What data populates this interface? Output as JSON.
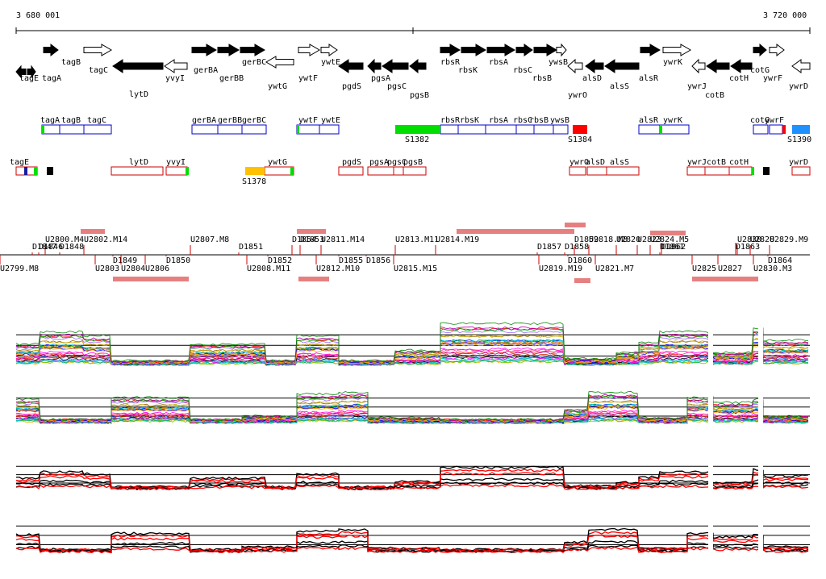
{
  "ruler": {
    "start_label": "3 680 001",
    "end_label": "3 720 000"
  },
  "genes_top": [
    {
      "name": "tagE",
      "label": "tagE",
      "strand": "-"
    },
    {
      "name": "tagA",
      "label": "tagA",
      "strand": "+"
    },
    {
      "name": "tagB",
      "label": "tagB",
      "strand": "+"
    },
    {
      "name": "tagC",
      "label": "tagC",
      "strand": "+"
    },
    {
      "name": "lytD",
      "label": "lytD",
      "strand": "-"
    },
    {
      "name": "yvyI",
      "label": "yvyI",
      "strand": "-"
    },
    {
      "name": "gerBA",
      "label": "gerBA",
      "strand": "+"
    },
    {
      "name": "gerBB",
      "label": "gerBB",
      "strand": "+"
    },
    {
      "name": "gerBC",
      "label": "gerBC",
      "strand": "+"
    },
    {
      "name": "ywtG",
      "label": "ywtG",
      "strand": "-"
    },
    {
      "name": "ywtF",
      "label": "ywtF",
      "strand": "+"
    },
    {
      "name": "ywtE",
      "label": "ywtE",
      "strand": "+"
    },
    {
      "name": "pgdS",
      "label": "pgdS",
      "strand": "-"
    },
    {
      "name": "pgsA",
      "label": "pgsA",
      "strand": "-"
    },
    {
      "name": "pgsC",
      "label": "pgsC",
      "strand": "-"
    },
    {
      "name": "pgsB",
      "label": "pgsB",
      "strand": "-"
    },
    {
      "name": "rbsR",
      "label": "rbsR",
      "strand": "+"
    },
    {
      "name": "rbsK",
      "label": "rbsK",
      "strand": "+"
    },
    {
      "name": "rbsA",
      "label": "rbsA",
      "strand": "+"
    },
    {
      "name": "rbsC",
      "label": "rbsC",
      "strand": "+"
    },
    {
      "name": "rbsB",
      "label": "rbsB",
      "strand": "+"
    },
    {
      "name": "ywsB",
      "label": "ywsB",
      "strand": "+"
    },
    {
      "name": "ywrO",
      "label": "ywrO",
      "strand": "-"
    },
    {
      "name": "alsD",
      "label": "alsD",
      "strand": "-"
    },
    {
      "name": "alsS",
      "label": "alsS",
      "strand": "-"
    },
    {
      "name": "alsR",
      "label": "alsR",
      "strand": "+"
    },
    {
      "name": "ywrK",
      "label": "ywrK",
      "strand": "+"
    },
    {
      "name": "ywrJ",
      "label": "ywrJ",
      "strand": "-"
    },
    {
      "name": "cotB",
      "label": "cotB",
      "strand": "-"
    },
    {
      "name": "cotH",
      "label": "cotH",
      "strand": "-"
    },
    {
      "name": "cotG",
      "label": "cotG",
      "strand": "+"
    },
    {
      "name": "ywrF",
      "label": "ywrF",
      "strand": "+"
    },
    {
      "name": "ywrD",
      "label": "ywrD",
      "strand": "-"
    }
  ],
  "plus_track_labels": [
    "tagA",
    "tagB",
    "tagC",
    "gerBA",
    "gerBB",
    "gerBC",
    "ywtF",
    "ywtE",
    "rbsR",
    "rbsK",
    "rbsA",
    "rbsC",
    "rbsB",
    "ywsB",
    "alsR",
    "ywrK",
    "cotG",
    "ywrF",
    "S1382",
    "S1384",
    "S1390"
  ],
  "minus_track_labels": [
    "tagE",
    "lytD",
    "yvyI",
    "ywtG",
    "pgdS",
    "pgsA",
    "pgsC",
    "pgsB",
    "ywrO",
    "alsD",
    "alsS",
    "ywrJ",
    "cotB",
    "cotH",
    "ywrD",
    "S1378"
  ],
  "upper_segments": [
    "U2800.M4",
    "D1847",
    "D1848",
    "U2802.M14",
    "U2807.M8",
    "D1851",
    "D1854",
    "D1853",
    "U2811.M14",
    "U2813.M11",
    "U2814.M19",
    "D1857",
    "D1858",
    "D1859",
    "U2818.M8",
    "U2820",
    "U2823",
    "U2824.M5",
    "D1861",
    "U2830",
    "U2828",
    "U2829.M9",
    "D1846"
  ],
  "lower_segments": [
    "U2799.M8",
    "U2803",
    "D1849",
    "U2804",
    "U2806",
    "D1850",
    "U2808.M11",
    "D1852",
    "U2812.M10",
    "D1855",
    "D1856",
    "U2815.M15",
    "U2819.M19",
    "D1860",
    "U2821.M7",
    "D1862",
    "U2825",
    "U2827",
    "U2830.M3",
    "D1864",
    "D1863"
  ],
  "expression_panels": [
    {
      "name": "heatlines-plus",
      "style": "multicolor"
    },
    {
      "name": "heatlines-minus",
      "style": "multicolor"
    },
    {
      "name": "selected-plus",
      "style": "black-red"
    },
    {
      "name": "selected-minus",
      "style": "black-red"
    }
  ],
  "colors": {
    "plus_box": "#0000cc",
    "minus_box": "#cc0000",
    "green_marker": "#00dd00",
    "orange_marker": "#ffc000",
    "blue_marker": "#1e90ff",
    "red_marker": "#ff0000"
  }
}
